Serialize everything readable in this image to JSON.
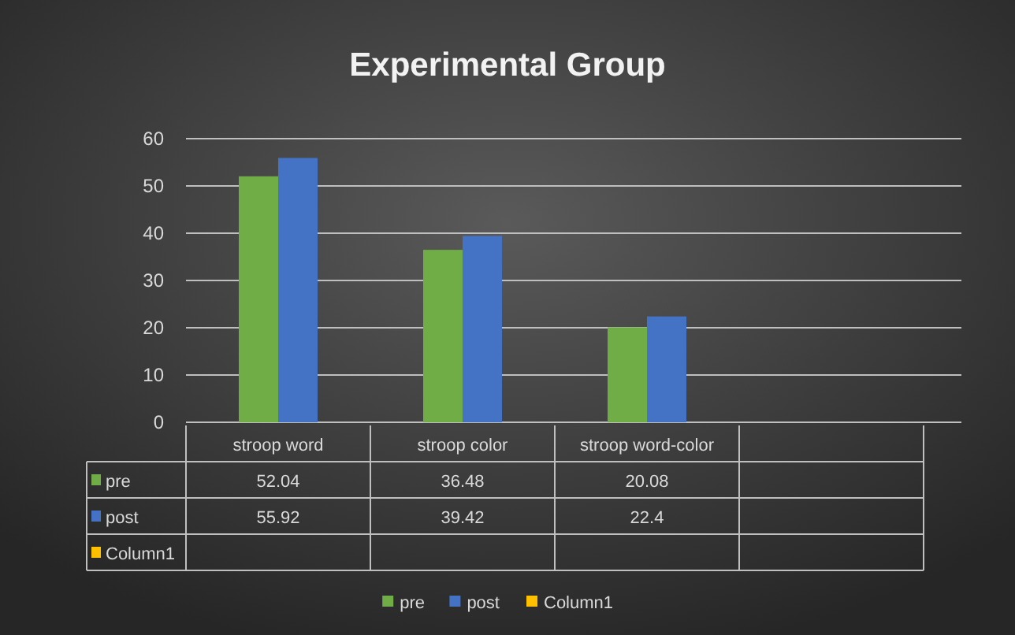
{
  "chart_data": {
    "type": "bar",
    "title": "Experimental Group",
    "categories": [
      "stroop word",
      "stroop color",
      "stroop word-color",
      null
    ],
    "series": [
      {
        "name": "pre",
        "color": "#70ad47",
        "values": [
          52.04,
          36.48,
          20.08,
          null
        ]
      },
      {
        "name": "post",
        "color": "#4472c4",
        "values": [
          55.92,
          39.42,
          22.4,
          null
        ]
      },
      {
        "name": "Column1",
        "color": "#ffc000",
        "values": [
          null,
          null,
          null,
          null
        ]
      }
    ],
    "ylim": [
      0,
      60
    ],
    "yticks": [
      0,
      10,
      20,
      30,
      40,
      50,
      60
    ],
    "grid": "y",
    "data_labels": true,
    "legend": "bottom"
  }
}
